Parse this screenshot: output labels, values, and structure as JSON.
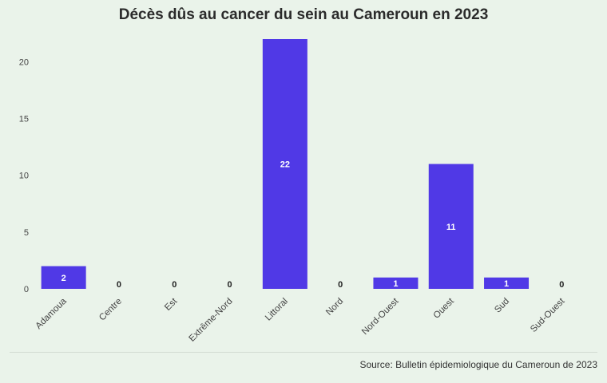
{
  "title": "Décès dûs au cancer du sein au Cameroun en 2023",
  "source": "Source: Bulletin épidemiologique du Cameroun de 2023",
  "colors": {
    "bar": "#5039e6",
    "background": "#eaf3ea"
  },
  "chart_data": {
    "type": "bar",
    "title": "Décès dûs au cancer du sein au Cameroun en 2023",
    "xlabel": "",
    "ylabel": "",
    "categories": [
      "Adamoua",
      "Centre",
      "Est",
      "Extrême-Nord",
      "Littoral",
      "Nord",
      "Nord-Ouest",
      "Ouest",
      "Sud",
      "Sud-Ouest"
    ],
    "values": [
      2,
      0,
      0,
      0,
      22,
      0,
      1,
      11,
      1,
      0
    ],
    "ylim": [
      0,
      22
    ],
    "yticks": [
      0,
      5,
      10,
      15,
      20
    ],
    "grid": false,
    "legend": "none",
    "data_labels": true
  }
}
